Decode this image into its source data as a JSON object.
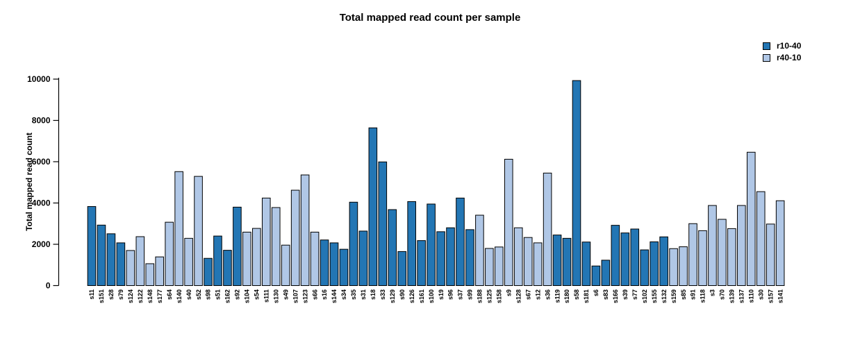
{
  "chart_data": {
    "type": "bar",
    "title": "Total mapped read count per sample",
    "xlabel": "",
    "ylabel": "Total mapped read count",
    "ylim": [
      0,
      10000
    ],
    "yticks": [
      0,
      2000,
      4000,
      6000,
      8000,
      10000
    ],
    "grid": false,
    "legend_position": "top-right",
    "legend": [
      {
        "label": "r10-40",
        "color": "#2376b4"
      },
      {
        "label": "r40-10",
        "color": "#b0c7e6"
      }
    ],
    "bar_border_color": "#000000",
    "categories": [
      "s11",
      "s151",
      "s28",
      "s79",
      "s124",
      "s122",
      "s148",
      "s177",
      "s64",
      "s140",
      "s40",
      "s52",
      "s98",
      "s51",
      "s162",
      "s92",
      "s104",
      "s54",
      "s111",
      "s130",
      "s49",
      "s107",
      "s123",
      "s66",
      "s16",
      "s144",
      "s34",
      "s35",
      "s31",
      "s18",
      "s33",
      "s129",
      "s90",
      "s126",
      "s161",
      "s100",
      "s19",
      "s96",
      "s37",
      "s99",
      "s188",
      "s125",
      "s158",
      "s9",
      "s128",
      "s67",
      "s12",
      "s36",
      "s119",
      "s180",
      "s58",
      "s181",
      "s6",
      "s83",
      "s166",
      "s39",
      "s77",
      "s102",
      "s155",
      "s132",
      "s159",
      "s85",
      "s91",
      "s118",
      "s3",
      "s70",
      "s139",
      "s137",
      "s110",
      "s30",
      "s157",
      "s141"
    ],
    "values": [
      3830,
      2930,
      2510,
      2070,
      1700,
      2370,
      1060,
      1390,
      3070,
      5520,
      2290,
      5290,
      1320,
      2400,
      1710,
      3800,
      2590,
      2770,
      4240,
      3780,
      1960,
      4620,
      5360,
      2590,
      2210,
      2070,
      1760,
      4040,
      2640,
      7640,
      5990,
      3680,
      1650,
      4070,
      2180,
      3950,
      2610,
      2800,
      4240,
      2710,
      3410,
      1800,
      1870,
      6120,
      2800,
      2330,
      2070,
      5450,
      2450,
      2290,
      9930,
      2110,
      950,
      1230,
      2920,
      2550,
      2740,
      1730,
      2120,
      2360,
      1790,
      1880,
      3000,
      2660,
      3880,
      3210,
      2760,
      3880,
      6460,
      4550,
      2980,
      4110
    ],
    "groups": [
      "r10-40",
      "r10-40",
      "r10-40",
      "r10-40",
      "r40-10",
      "r40-10",
      "r40-10",
      "r40-10",
      "r40-10",
      "r40-10",
      "r40-10",
      "r40-10",
      "r10-40",
      "r10-40",
      "r10-40",
      "r10-40",
      "r40-10",
      "r40-10",
      "r40-10",
      "r40-10",
      "r40-10",
      "r40-10",
      "r40-10",
      "r40-10",
      "r10-40",
      "r10-40",
      "r10-40",
      "r10-40",
      "r10-40",
      "r10-40",
      "r10-40",
      "r10-40",
      "r10-40",
      "r10-40",
      "r10-40",
      "r10-40",
      "r10-40",
      "r10-40",
      "r10-40",
      "r10-40",
      "r40-10",
      "r40-10",
      "r40-10",
      "r40-10",
      "r40-10",
      "r40-10",
      "r40-10",
      "r40-10",
      "r10-40",
      "r10-40",
      "r10-40",
      "r10-40",
      "r10-40",
      "r10-40",
      "r10-40",
      "r10-40",
      "r10-40",
      "r10-40",
      "r10-40",
      "r10-40",
      "r40-10",
      "r40-10",
      "r40-10",
      "r40-10",
      "r40-10",
      "r40-10",
      "r40-10",
      "r40-10",
      "r40-10",
      "r40-10",
      "r40-10",
      "r40-10"
    ],
    "colors": {
      "r10-40": "#2376b4",
      "r40-10": "#b0c7e6"
    }
  }
}
